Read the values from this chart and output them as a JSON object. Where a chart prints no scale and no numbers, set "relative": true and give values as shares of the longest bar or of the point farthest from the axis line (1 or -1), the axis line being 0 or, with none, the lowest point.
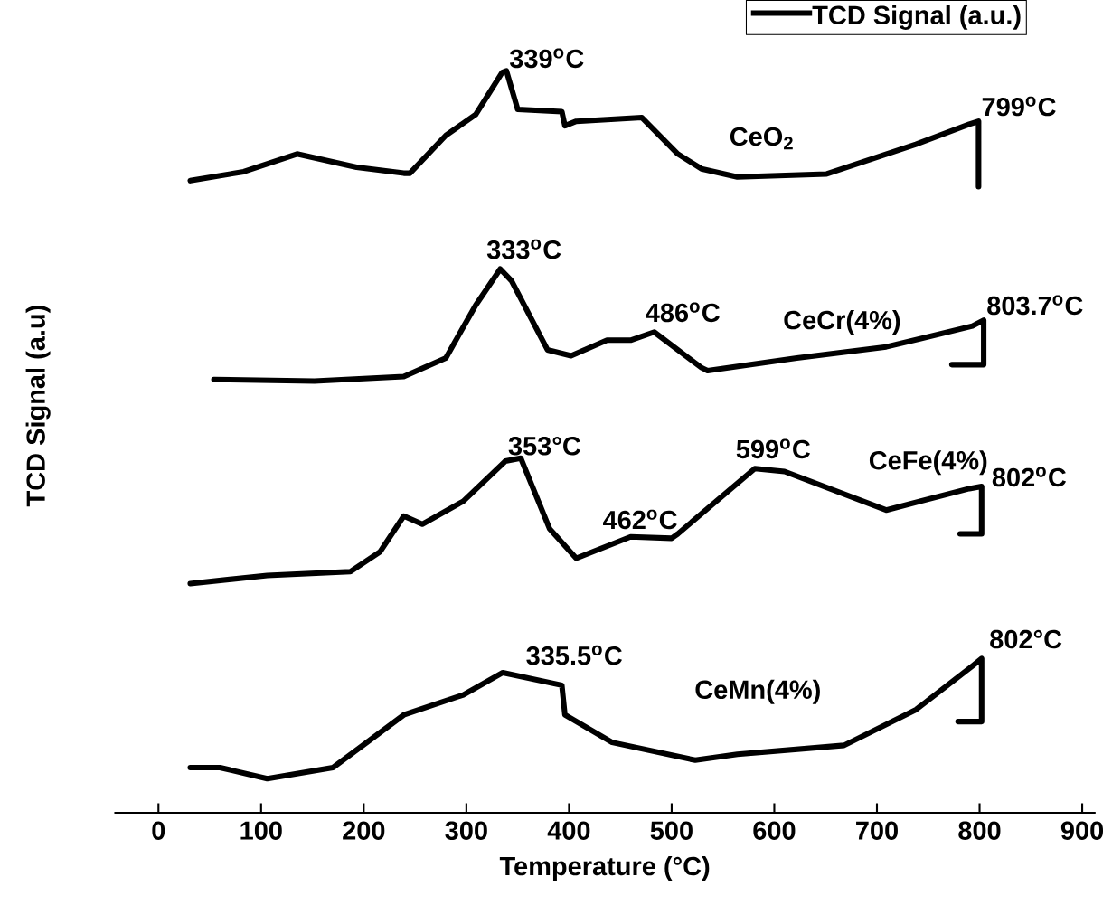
{
  "chart_data": {
    "type": "line",
    "relative": true,
    "xlabel": "Temperature (°C)",
    "ylabel": "TCD Signal (a.u)",
    "legend_title": "TCD Signal (a.u.)",
    "legend": "top right",
    "tick_labels": "x",
    "xlim": [
      -43,
      913
    ],
    "xticks": [
      0,
      100,
      200,
      300,
      400,
      500,
      600,
      700,
      800,
      900
    ],
    "series": [
      {
        "name": "CeO$_{2}$",
        "color": "#000000",
        "x": [
          31,
          83,
          135,
          193,
          239,
          245,
          280,
          309,
          335,
          339,
          350,
          393,
          396,
          407,
          471,
          506,
          529,
          564,
          651,
          738,
          790,
          799,
          799
        ],
        "values": [
          0.852,
          0.864,
          0.888,
          0.87,
          0.862,
          0.862,
          0.913,
          0.941,
          0.998,
          1.0,
          0.948,
          0.945,
          0.926,
          0.932,
          0.937,
          0.888,
          0.868,
          0.857,
          0.861,
          0.901,
          0.928,
          0.932,
          0.844
        ]
      },
      {
        "name": "CeCr(4%)",
        "color": "#000000",
        "x": [
          54,
          152,
          239,
          280,
          309,
          333,
          344,
          379,
          402,
          437,
          460,
          483,
          529,
          535,
          622,
          709,
          793,
          804,
          804,
          773
        ],
        "values": [
          0.584,
          0.582,
          0.588,
          0.613,
          0.684,
          0.733,
          0.717,
          0.624,
          0.616,
          0.637,
          0.637,
          0.648,
          0.6,
          0.596,
          0.613,
          0.628,
          0.656,
          0.664,
          0.604,
          0.604
        ]
      },
      {
        "name": "CeFe(4%)",
        "color": "#000000",
        "x": [
          31,
          106,
          187,
          216,
          239,
          257,
          297,
          338,
          353,
          381,
          407,
          460,
          500,
          506,
          581,
          610,
          709,
          790,
          802,
          802,
          781
        ],
        "values": [
          0.309,
          0.32,
          0.325,
          0.352,
          0.4,
          0.389,
          0.42,
          0.474,
          0.478,
          0.383,
          0.343,
          0.372,
          0.37,
          0.376,
          0.464,
          0.46,
          0.408,
          0.437,
          0.44,
          0.376,
          0.376
        ]
      },
      {
        "name": "CeMn(4%)",
        "color": "#000000",
        "x": [
          31,
          60,
          106,
          170,
          239,
          297,
          335.5,
          393,
          396,
          442,
          523,
          564,
          668,
          738,
          793,
          802,
          802,
          779
        ],
        "values": [
          0.061,
          0.061,
          0.046,
          0.061,
          0.132,
          0.159,
          0.189,
          0.172,
          0.132,
          0.095,
          0.071,
          0.079,
          0.091,
          0.139,
          0.198,
          0.208,
          0.123,
          0.123
        ]
      }
    ],
    "annotations": [
      {
        "text": "339$^{o}$C",
        "x": 339,
        "y": 1.0
      },
      {
        "text": "799$^{o}$C",
        "x": 799,
        "y": 0.932
      },
      {
        "text": "333$^{o}$C",
        "x": 333,
        "y": 0.733
      },
      {
        "text": "486$^{o}$C",
        "x": 483,
        "y": 0.648
      },
      {
        "text": "803.7$^{o}$C",
        "x": 804,
        "y": 0.664
      },
      {
        "text": "353°C",
        "x": 353,
        "y": 0.478
      },
      {
        "text": "462$^{o}$C",
        "x": 460,
        "y": 0.372
      },
      {
        "text": "599$^{o}$C",
        "x": 599,
        "y": 0.464
      },
      {
        "text": "802$^{o}$C",
        "x": 802,
        "y": 0.44
      },
      {
        "text": "335.5$^{o}$C",
        "x": 335.5,
        "y": 0.189
      },
      {
        "text": "802°C",
        "x": 802,
        "y": 0.208
      }
    ]
  }
}
